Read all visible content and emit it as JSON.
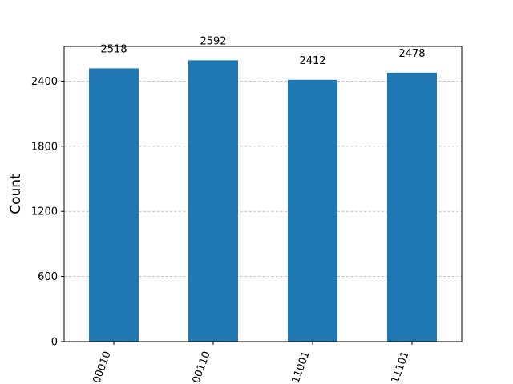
{
  "chart_data": {
    "type": "bar",
    "categories": [
      "00010",
      "00110",
      "11001",
      "11101"
    ],
    "values": [
      2518,
      2592,
      2412,
      2478
    ],
    "data_labels": [
      "2518",
      "2592",
      "2412",
      "2478"
    ],
    "title": "",
    "xlabel": "",
    "ylabel": "Count",
    "ylim": [
      0,
      2720
    ],
    "yticks": [
      0,
      600,
      1200,
      1800,
      2400
    ],
    "ytick_labels": [
      "0",
      "600",
      "1200",
      "1800",
      "2400"
    ],
    "grid": "y-dashed",
    "colors": {
      "bar": "#1f77b4",
      "grid": "#b0b0b0"
    }
  }
}
